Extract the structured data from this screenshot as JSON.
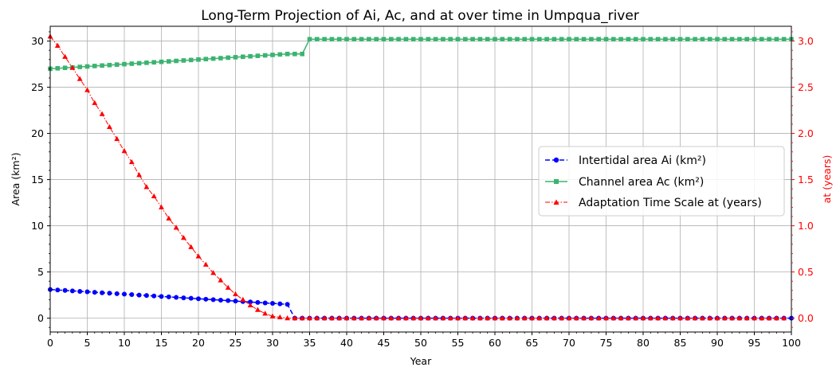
{
  "chart_data": {
    "type": "line",
    "title": "Long-Term Projection of Ai, Ac, and at over time in Umpqua_river",
    "xlabel": "Year",
    "ylabel_left": "Area (km²)",
    "ylabel_right": "at (years)",
    "xlim": [
      0,
      100
    ],
    "ylim_left": [
      -1.5,
      31.6
    ],
    "ylim_right": [
      -0.15,
      3.16
    ],
    "x_ticks": [
      "0",
      "5",
      "10",
      "15",
      "20",
      "25",
      "30",
      "35",
      "40",
      "45",
      "50",
      "55",
      "60",
      "65",
      "70",
      "75",
      "80",
      "85",
      "90",
      "95",
      "100"
    ],
    "y_left_ticks": [
      "0",
      "5",
      "10",
      "15",
      "20",
      "25",
      "30"
    ],
    "y_right_ticks": [
      "0.0",
      "0.5",
      "1.0",
      "1.5",
      "2.0",
      "2.5",
      "3.0"
    ],
    "grid": true,
    "legend_position": "center-right",
    "series": [
      {
        "name": "Intertidal area Ai (km²)",
        "axis": "left",
        "color": "#0000ff",
        "line_style": "dashed",
        "marker": "circle",
        "x_start": 0,
        "x_end": 100,
        "values_by_year": [
          3.1,
          3.05,
          3.0,
          2.95,
          2.9,
          2.85,
          2.8,
          2.75,
          2.7,
          2.65,
          2.6,
          2.55,
          2.5,
          2.45,
          2.4,
          2.35,
          2.3,
          2.25,
          2.2,
          2.15,
          2.1,
          2.05,
          2.0,
          1.95,
          1.9,
          1.85,
          1.8,
          1.75,
          1.7,
          1.65,
          1.6,
          1.55,
          1.5,
          0,
          0,
          0,
          0,
          0,
          0,
          0,
          0,
          0,
          0,
          0,
          0,
          0,
          0,
          0,
          0,
          0,
          0,
          0,
          0,
          0,
          0,
          0,
          0,
          0,
          0,
          0,
          0,
          0,
          0,
          0,
          0,
          0,
          0,
          0,
          0,
          0,
          0,
          0,
          0,
          0,
          0,
          0,
          0,
          0,
          0,
          0,
          0,
          0,
          0,
          0,
          0,
          0,
          0,
          0,
          0,
          0,
          0,
          0,
          0,
          0,
          0,
          0,
          0,
          0,
          0,
          0,
          0
        ]
      },
      {
        "name": "Channel area Ac (km²)",
        "axis": "left",
        "color": "#3cb371",
        "line_style": "solid",
        "marker": "square",
        "x_start": 0,
        "x_end": 100,
        "values_by_year": [
          27.0,
          27.05,
          27.1,
          27.15,
          27.2,
          27.25,
          27.3,
          27.35,
          27.4,
          27.45,
          27.5,
          27.55,
          27.6,
          27.65,
          27.7,
          27.75,
          27.8,
          27.85,
          27.9,
          27.95,
          28.0,
          28.05,
          28.1,
          28.15,
          28.2,
          28.25,
          28.3,
          28.35,
          28.4,
          28.45,
          28.5,
          28.55,
          28.6,
          28.6,
          28.6,
          30.2,
          30.2,
          30.2,
          30.2,
          30.2,
          30.2,
          30.2,
          30.2,
          30.2,
          30.2,
          30.2,
          30.2,
          30.2,
          30.2,
          30.2,
          30.2,
          30.2,
          30.2,
          30.2,
          30.2,
          30.2,
          30.2,
          30.2,
          30.2,
          30.2,
          30.2,
          30.2,
          30.2,
          30.2,
          30.2,
          30.2,
          30.2,
          30.2,
          30.2,
          30.2,
          30.2,
          30.2,
          30.2,
          30.2,
          30.2,
          30.2,
          30.2,
          30.2,
          30.2,
          30.2,
          30.2,
          30.2,
          30.2,
          30.2,
          30.2,
          30.2,
          30.2,
          30.2,
          30.2,
          30.2,
          30.2,
          30.2,
          30.2,
          30.2,
          30.2,
          30.2,
          30.2,
          30.2,
          30.2,
          30.2,
          30.2
        ]
      },
      {
        "name": "Adaptation Time Scale at (years)",
        "axis": "right",
        "color": "#ff0000",
        "line_style": "dashdot",
        "marker": "triangle",
        "x_start": 0,
        "x_end": 99,
        "values_by_year": [
          3.05,
          2.95,
          2.83,
          2.71,
          2.59,
          2.47,
          2.33,
          2.21,
          2.07,
          1.94,
          1.81,
          1.69,
          1.55,
          1.42,
          1.32,
          1.2,
          1.08,
          0.98,
          0.87,
          0.77,
          0.67,
          0.58,
          0.49,
          0.41,
          0.33,
          0.26,
          0.2,
          0.14,
          0.09,
          0.05,
          0.02,
          0.01,
          0,
          0,
          0,
          0,
          0,
          0,
          0,
          0,
          0,
          0,
          0,
          0,
          0,
          0,
          0,
          0,
          0,
          0,
          0,
          0,
          0,
          0,
          0,
          0,
          0,
          0,
          0,
          0,
          0,
          0,
          0,
          0,
          0,
          0,
          0,
          0,
          0,
          0,
          0,
          0,
          0,
          0,
          0,
          0,
          0,
          0,
          0,
          0,
          0,
          0,
          0,
          0,
          0,
          0,
          0,
          0,
          0,
          0,
          0,
          0,
          0,
          0,
          0,
          0,
          0,
          0,
          0,
          0
        ]
      }
    ]
  }
}
